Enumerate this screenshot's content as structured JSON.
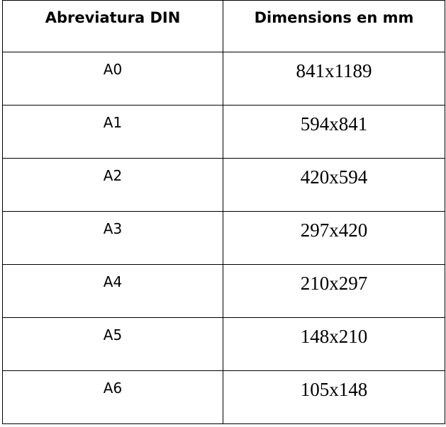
{
  "table": {
    "headers": [
      "Abreviatura DIN",
      "Dimensions en mm"
    ],
    "rows": [
      {
        "abbr": "A0",
        "dims": "841x1189"
      },
      {
        "abbr": "A1",
        "dims": "594x841"
      },
      {
        "abbr": "A2",
        "dims": "420x594"
      },
      {
        "abbr": "A3",
        "dims": "297x420"
      },
      {
        "abbr": "A4",
        "dims": "210x297"
      },
      {
        "abbr": "A5",
        "dims": "148x210"
      },
      {
        "abbr": "A6",
        "dims": "105x148"
      }
    ]
  }
}
